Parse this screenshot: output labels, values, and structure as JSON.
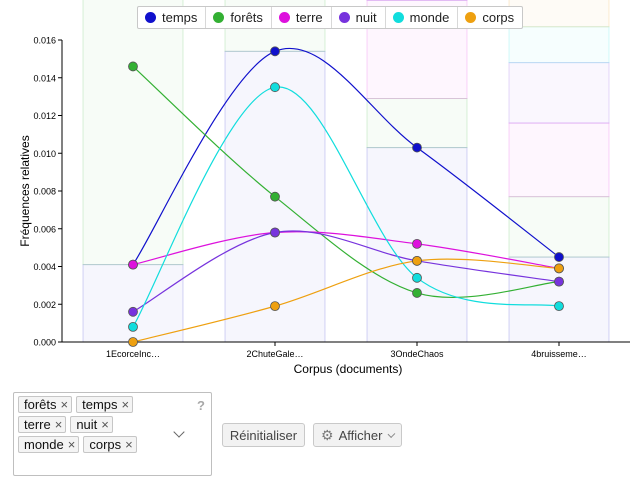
{
  "chart_data": {
    "type": "line",
    "xlabel": "Corpus (documents)",
    "ylabel": "Fréquences relatives",
    "categories": [
      "1EcorceInc…",
      "2ChuteGale…",
      "3OndeChaos",
      "4bruisseme…"
    ],
    "ylim": [
      0,
      0.016
    ],
    "yticks": [
      "0.000",
      "0.002",
      "0.004",
      "0.006",
      "0.008",
      "0.010",
      "0.012",
      "0.014",
      "0.016"
    ],
    "smooth": true,
    "stacked_bar_background": true,
    "legend_position": "top",
    "series": [
      {
        "name": "temps",
        "color": "#1010cc",
        "values": [
          0.0041,
          0.0154,
          0.0103,
          0.0045
        ]
      },
      {
        "name": "forêts",
        "color": "#33b033",
        "values": [
          0.0146,
          0.0077,
          0.0026,
          0.0032
        ]
      },
      {
        "name": "terre",
        "color": "#dd11dd",
        "values": [
          0.0041,
          0.0058,
          0.0052,
          0.0039
        ]
      },
      {
        "name": "nuit",
        "color": "#7733dd",
        "values": [
          0.0016,
          0.0058,
          0.0043,
          0.0032
        ]
      },
      {
        "name": "monde",
        "color": "#11dddd",
        "values": [
          0.0008,
          0.0135,
          0.0034,
          0.0019
        ]
      },
      {
        "name": "corps",
        "color": "#eea010",
        "values": [
          0.0,
          0.0019,
          0.0043,
          0.0039
        ]
      }
    ]
  },
  "tagbox": {
    "tags": [
      "forêts",
      "temps",
      "terre",
      "nuit",
      "monde",
      "corps"
    ],
    "remove_glyph": "×",
    "help": "?"
  },
  "controls": {
    "reset_label": "Réinitialiser",
    "show_label": "Afficher"
  }
}
